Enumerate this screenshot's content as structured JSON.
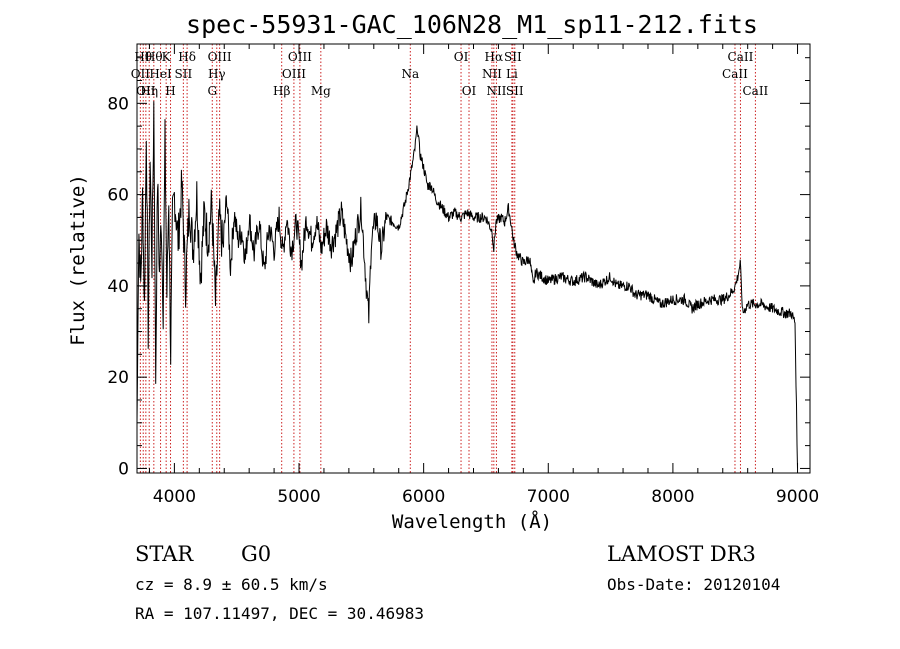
{
  "chart_data": {
    "type": "line",
    "title": "spec-55931-GAC_106N28_M1_sp11-212.fits",
    "xlabel": "Wavelength (Å)",
    "ylabel": "Flux (relative)",
    "xlim": [
      3700,
      9100
    ],
    "ylim": [
      -1,
      93
    ],
    "xticks": [
      4000,
      5000,
      6000,
      7000,
      8000,
      9000
    ],
    "xtick_labels": [
      "4000",
      "5000",
      "6000",
      "7000",
      "8000",
      "9000"
    ],
    "yticks": [
      0,
      20,
      40,
      60,
      80
    ],
    "ytick_labels": [
      "0",
      "20",
      "40",
      "60",
      "80"
    ],
    "series": [
      {
        "name": "spectrum",
        "x": [
          3700,
          3715,
          3730,
          3745,
          3760,
          3775,
          3790,
          3805,
          3820,
          3835,
          3850,
          3865,
          3880,
          3895,
          3910,
          3925,
          3940,
          3955,
          3970,
          3985,
          4000,
          4030,
          4060,
          4090,
          4120,
          4150,
          4180,
          4210,
          4240,
          4270,
          4300,
          4330,
          4360,
          4390,
          4420,
          4450,
          4480,
          4510,
          4540,
          4570,
          4600,
          4640,
          4680,
          4720,
          4760,
          4800,
          4840,
          4870,
          4900,
          4940,
          4980,
          5020,
          5060,
          5100,
          5140,
          5180,
          5220,
          5260,
          5300,
          5340,
          5380,
          5420,
          5460,
          5500,
          5540,
          5560,
          5580,
          5620,
          5660,
          5700,
          5750,
          5800,
          5850,
          5900,
          5930,
          5950,
          5970,
          6000,
          6030,
          6060,
          6100,
          6150,
          6200,
          6250,
          6300,
          6350,
          6400,
          6450,
          6500,
          6550,
          6563,
          6580,
          6620,
          6650,
          6680,
          6700,
          6720,
          6750,
          6800,
          6850,
          6880,
          6900,
          6950,
          7000,
          7100,
          7200,
          7300,
          7400,
          7500,
          7550,
          7600,
          7650,
          7700,
          7800,
          7900,
          8000,
          8100,
          8150,
          8200,
          8300,
          8400,
          8450,
          8480,
          8500,
          8520,
          8540,
          8560,
          8600,
          8700,
          8800,
          8900,
          8950,
          8980,
          9000
        ],
        "y": [
          10,
          52,
          40,
          60,
          35,
          75,
          30,
          68,
          45,
          80,
          20,
          64,
          42,
          55,
          35,
          72,
          38,
          60,
          25,
          55,
          60,
          50,
          62,
          40,
          58,
          48,
          60,
          42,
          56,
          50,
          58,
          36,
          55,
          48,
          60,
          44,
          56,
          50,
          52,
          46,
          55,
          47,
          54,
          43,
          53,
          48,
          55,
          47,
          55,
          48,
          54,
          45,
          55,
          50,
          54,
          48,
          53,
          49,
          52,
          56,
          50,
          45,
          52,
          57,
          40,
          33,
          50,
          55,
          48,
          55,
          54,
          53,
          58,
          65,
          70,
          75,
          69,
          66,
          62,
          62,
          59,
          57,
          55,
          56,
          55,
          56,
          55,
          55,
          55,
          52,
          48,
          54,
          55,
          54,
          57,
          54,
          50,
          47,
          45,
          46,
          40,
          43,
          42,
          41,
          42,
          41,
          42,
          40,
          42,
          40,
          40,
          40,
          38,
          38,
          36,
          37,
          37,
          35,
          36,
          37,
          37,
          38,
          39,
          40,
          42,
          45,
          34,
          36,
          36,
          35,
          34,
          34,
          32,
          0
        ]
      }
    ],
    "emission_lines": [
      {
        "wavelength": 3727,
        "label": "OII",
        "row": 2
      },
      {
        "wavelength": 3750,
        "label": "Hθ",
        "row": 1
      },
      {
        "wavelength": 3771,
        "label": "OII",
        "row": 3
      },
      {
        "wavelength": 3798,
        "label": "Hη",
        "row": 3
      },
      {
        "wavelength": 3835,
        "label": "Hθ",
        "row": 1
      },
      {
        "wavelength": 3889,
        "label": "HeI",
        "row": 2
      },
      {
        "wavelength": 3934,
        "label": "K",
        "row": 1
      },
      {
        "wavelength": 3969,
        "label": "H",
        "row": 3
      },
      {
        "wavelength": 4072,
        "label": "SII",
        "row": 2
      },
      {
        "wavelength": 4102,
        "label": "Hδ",
        "row": 1
      },
      {
        "wavelength": 4304,
        "label": "G",
        "row": 3
      },
      {
        "wavelength": 4340,
        "label": "Hγ",
        "row": 2
      },
      {
        "wavelength": 4363,
        "label": "OIII",
        "row": 1
      },
      {
        "wavelength": 4861,
        "label": "Hβ",
        "row": 3
      },
      {
        "wavelength": 4959,
        "label": "OIII",
        "row": 2
      },
      {
        "wavelength": 5007,
        "label": "OIII",
        "row": 1
      },
      {
        "wavelength": 5175,
        "label": "Mg",
        "row": 3
      },
      {
        "wavelength": 5893,
        "label": "Na",
        "row": 2
      },
      {
        "wavelength": 6300,
        "label": "OI",
        "row": 1
      },
      {
        "wavelength": 6364,
        "label": "OI",
        "row": 3
      },
      {
        "wavelength": 6548,
        "label": "NII",
        "row": 2
      },
      {
        "wavelength": 6563,
        "label": "Hα",
        "row": 1
      },
      {
        "wavelength": 6584,
        "label": "NII",
        "row": 3
      },
      {
        "wavelength": 6708,
        "label": "Li",
        "row": 2
      },
      {
        "wavelength": 6716,
        "label": "SII",
        "row": 1
      },
      {
        "wavelength": 6731,
        "label": "SII",
        "row": 3
      },
      {
        "wavelength": 8498,
        "label": "CaII",
        "row": 2
      },
      {
        "wavelength": 8542,
        "label": "CaII",
        "row": 1
      },
      {
        "wavelength": 8662,
        "label": "CaII",
        "row": 3
      }
    ]
  },
  "info": {
    "object_class": "STAR",
    "subclass": "G0",
    "survey": "LAMOST DR3",
    "cz": "cz = 8.9 ± 60.5 km/s",
    "obs_date": "Obs-Date: 20120104",
    "coords": "RA = 107.11497, DEC =  30.46983"
  },
  "colors": {
    "emission_line": "#cc2222",
    "spectrum": "#000000",
    "axis": "#000000"
  }
}
